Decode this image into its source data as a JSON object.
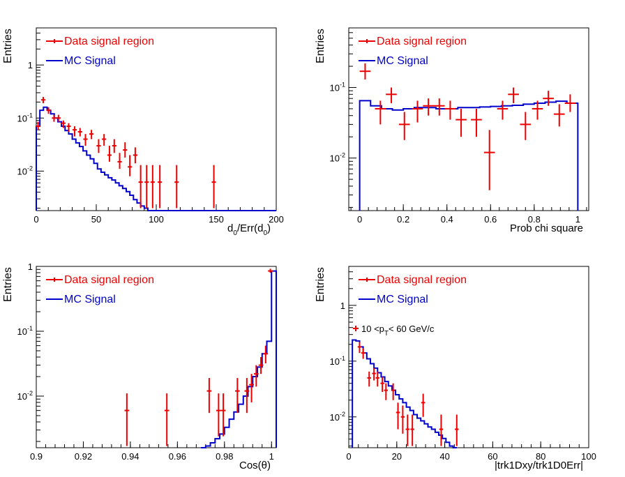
{
  "legend": {
    "data_label": "Data signal region",
    "mc_label": "MC Signal"
  },
  "colors": {
    "data": "#ee0000",
    "mc": "#0000cc",
    "axis": "#000000",
    "background": "#ffffff"
  },
  "chart_data": [
    {
      "id": "tl",
      "type": "histogram",
      "log_y": true,
      "xlim": [
        0,
        200
      ],
      "ylim": [
        0.0018,
        5
      ],
      "xticks": [
        0,
        50,
        100,
        150,
        200
      ],
      "xtick_labels": [
        "0",
        "50",
        "100",
        "150",
        "200"
      ],
      "yticks": [
        0.01,
        0.1,
        1
      ],
      "ytick_labels": [
        "10^-2",
        "10^-1",
        "1"
      ],
      "xlabel": "d_0/Err(d_0)",
      "ylabel": "Entries",
      "annotation": "",
      "mc": {
        "bin_width": 3.0,
        "values": [
          0.07,
          0.14,
          0.16,
          0.14,
          0.12,
          0.1,
          0.085,
          0.07,
          0.058,
          0.05,
          0.04,
          0.034,
          0.029,
          0.024,
          0.02,
          0.017,
          0.014,
          0.011,
          0.0095,
          0.0085,
          0.0075,
          0.0068,
          0.006,
          0.0053,
          0.0047,
          0.0041,
          0.0035,
          0.0029,
          0.0025,
          0.0022,
          0.002,
          0.0018,
          0.0018
        ]
      },
      "data": {
        "x": [
          1.5,
          5.8,
          10.2,
          14.8,
          18.5,
          22.6,
          27,
          32,
          36.5,
          41,
          46,
          52,
          56.5,
          61,
          65,
          69.5,
          74,
          78,
          82.5,
          87,
          92,
          97,
          103,
          117,
          148
        ],
        "y": [
          0.07,
          0.22,
          0.14,
          0.1,
          0.1,
          0.08,
          0.07,
          0.06,
          0.055,
          0.04,
          0.05,
          0.03,
          0.04,
          0.02,
          0.03,
          0.015,
          0.025,
          0.012,
          0.02,
          0.0062,
          0.0062,
          0.0062,
          0.0062,
          0.0062,
          0.0062
        ],
        "xerr": 1.8,
        "lo": [
          0.06,
          0.19,
          0.12,
          0.085,
          0.085,
          0.065,
          0.055,
          0.045,
          0.045,
          0.03,
          0.04,
          0.022,
          0.03,
          0.015,
          0.022,
          0.011,
          0.018,
          0.008,
          0.014,
          0.002,
          0.002,
          0.002,
          0.002,
          0.002,
          0.002
        ],
        "hi": [
          0.085,
          0.25,
          0.16,
          0.115,
          0.115,
          0.09,
          0.08,
          0.07,
          0.065,
          0.05,
          0.06,
          0.04,
          0.05,
          0.03,
          0.04,
          0.022,
          0.035,
          0.02,
          0.028,
          0.013,
          0.013,
          0.013,
          0.013,
          0.013,
          0.013
        ]
      }
    },
    {
      "id": "tr",
      "type": "histogram",
      "log_y": true,
      "xlim": [
        -0.05,
        1.05
      ],
      "ylim": [
        0.0018,
        0.7
      ],
      "xticks": [
        0,
        0.2,
        0.4,
        0.6,
        0.8,
        1
      ],
      "xtick_labels": [
        "0",
        "0.2",
        "0.4",
        "0.6",
        "0.8",
        "1"
      ],
      "yticks": [
        0.01,
        0.1
      ],
      "ytick_labels": [
        "10^-2",
        "10^-1"
      ],
      "xlabel": "Prob chi square",
      "ylabel": "Entries",
      "annotation": "",
      "mc": {
        "bin_width": 0.05,
        "start": 0.0,
        "values": [
          0.065,
          0.055,
          0.05,
          0.048,
          0.05,
          0.052,
          0.052,
          0.05,
          0.05,
          0.052,
          0.052,
          0.053,
          0.054,
          0.055,
          0.056,
          0.058,
          0.06,
          0.062,
          0.064,
          0.06
        ]
      },
      "data": {
        "x": [
          0.025,
          0.095,
          0.145,
          0.205,
          0.265,
          0.315,
          0.365,
          0.415,
          0.465,
          0.535,
          0.595,
          0.655,
          0.705,
          0.76,
          0.815,
          0.865,
          0.915,
          0.965
        ],
        "y": [
          0.17,
          0.05,
          0.08,
          0.03,
          0.05,
          0.055,
          0.055,
          0.05,
          0.035,
          0.035,
          0.012,
          0.05,
          0.08,
          0.03,
          0.05,
          0.07,
          0.042,
          0.06
        ],
        "xerr": 0.025,
        "lo": [
          0.13,
          0.03,
          0.06,
          0.018,
          0.032,
          0.04,
          0.04,
          0.035,
          0.02,
          0.02,
          0.0035,
          0.035,
          0.06,
          0.018,
          0.035,
          0.055,
          0.028,
          0.045
        ],
        "hi": [
          0.22,
          0.065,
          0.1,
          0.045,
          0.065,
          0.07,
          0.07,
          0.065,
          0.05,
          0.05,
          0.025,
          0.065,
          0.1,
          0.045,
          0.065,
          0.09,
          0.058,
          0.08
        ]
      }
    },
    {
      "id": "bl",
      "type": "histogram",
      "log_y": true,
      "xlim": [
        0.9,
        1.002
      ],
      "ylim": [
        0.0016,
        1
      ],
      "xticks": [
        0.9,
        0.92,
        0.94,
        0.96,
        0.98,
        1
      ],
      "xtick_labels": [
        "0.9",
        "0.92",
        "0.94",
        "0.96",
        "0.98",
        "1"
      ],
      "yticks": [
        0.01,
        0.1,
        1
      ],
      "ytick_labels": [
        "10^-2",
        "10^-1",
        "1"
      ],
      "xlabel": "Cos(θ)",
      "ylabel": "Entries",
      "annotation": "",
      "mc": {
        "bin_width": 0.002,
        "start": 0.97,
        "values": [
          0.0016,
          0.0017,
          0.0019,
          0.0022,
          0.0026,
          0.0033,
          0.0044,
          0.0057,
          0.0075,
          0.01,
          0.014,
          0.02,
          0.028,
          0.045,
          0.07,
          0.85
        ]
      },
      "data": {
        "x": [
          0.9385,
          0.9555,
          0.9735,
          0.9775,
          0.9795,
          0.9855,
          0.9895,
          0.9915,
          0.9935,
          0.9955,
          0.9975,
          0.9995
        ],
        "y": [
          0.006,
          0.006,
          0.012,
          0.006,
          0.006,
          0.012,
          0.012,
          0.015,
          0.022,
          0.03,
          0.045,
          0.85
        ],
        "xerr": 0.001,
        "lo": [
          0.0017,
          0.0017,
          0.0055,
          0.0024,
          0.0024,
          0.0055,
          0.0055,
          0.008,
          0.014,
          0.022,
          0.032,
          0.8
        ],
        "hi": [
          0.011,
          0.011,
          0.019,
          0.011,
          0.011,
          0.019,
          0.019,
          0.022,
          0.03,
          0.04,
          0.06,
          0.92
        ]
      }
    },
    {
      "id": "br",
      "type": "histogram",
      "log_y": true,
      "xlim": [
        0,
        100
      ],
      "ylim": [
        0.0028,
        5
      ],
      "xticks": [
        0,
        20,
        40,
        60,
        80,
        100
      ],
      "xtick_labels": [
        "0",
        "20",
        "40",
        "60",
        "80",
        "100"
      ],
      "yticks": [
        0.01,
        0.1,
        1
      ],
      "ytick_labels": [
        "10^-2",
        "10^-1",
        "1"
      ],
      "xlabel": "|trk1Dxy/trk1D0Err|",
      "ylabel": "Entries",
      "annotation": "10 <p_T< 60 GeV/c",
      "mc": {
        "bin_width": 1.5,
        "start": 1.5,
        "values": [
          0.24,
          0.23,
          0.18,
          0.14,
          0.11,
          0.09,
          0.075,
          0.062,
          0.052,
          0.043,
          0.036,
          0.03,
          0.025,
          0.021,
          0.018,
          0.015,
          0.013,
          0.011,
          0.0095,
          0.0085,
          0.0075,
          0.0066,
          0.006,
          0.0053,
          0.0047,
          0.0041,
          0.0035,
          0.003,
          0.0028
        ]
      },
      "data": {
        "x": [
          4.5,
          6,
          8.5,
          10.5,
          12,
          14,
          15.5,
          18.5,
          20.5,
          22.5,
          24.5,
          26.5,
          31,
          38.5,
          45
        ],
        "y": [
          0.18,
          0.14,
          0.05,
          0.06,
          0.05,
          0.04,
          0.03,
          0.03,
          0.012,
          0.01,
          0.006,
          0.006,
          0.018,
          0.006,
          0.006
        ],
        "xerr": 0.8,
        "lo": [
          0.14,
          0.11,
          0.035,
          0.045,
          0.035,
          0.028,
          0.02,
          0.02,
          0.006,
          0.005,
          0.003,
          0.003,
          0.01,
          0.003,
          0.003
        ],
        "hi": [
          0.22,
          0.17,
          0.065,
          0.075,
          0.065,
          0.052,
          0.04,
          0.04,
          0.018,
          0.016,
          0.011,
          0.011,
          0.026,
          0.011,
          0.011
        ]
      }
    }
  ]
}
